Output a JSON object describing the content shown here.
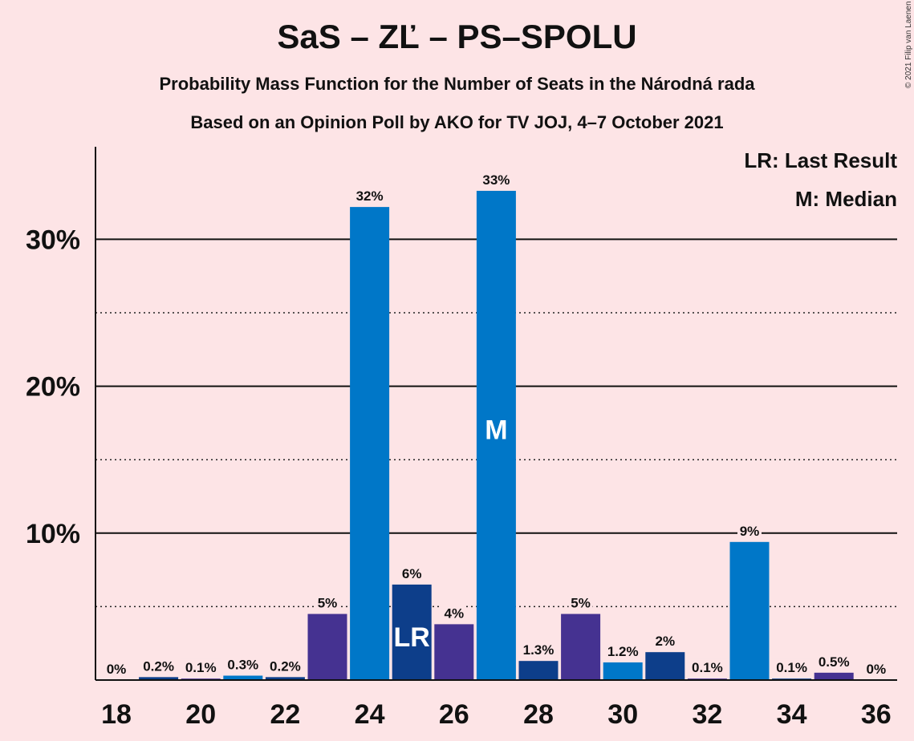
{
  "header": {
    "title": "SaS – ZĽ – PS–SPOLU",
    "subtitle1": "Probability Mass Function for the Number of Seats in the Národná rada",
    "subtitle2": "Based on an Opinion Poll by AKO for TV JOJ, 4–7 October 2021"
  },
  "copyright": "© 2021 Filip van Laenen",
  "legend": {
    "last_result": "LR: Last Result",
    "median": "M: Median"
  },
  "chart_data": {
    "type": "bar",
    "x": [
      18,
      19,
      20,
      21,
      22,
      23,
      24,
      25,
      26,
      27,
      28,
      29,
      30,
      31,
      32,
      33,
      34,
      35,
      36
    ],
    "values": [
      0,
      0.2,
      0.1,
      0.3,
      0.2,
      4.5,
      32.2,
      6.5,
      3.8,
      33.3,
      1.3,
      4.5,
      1.2,
      1.9,
      0.1,
      9.4,
      0.1,
      0.5,
      0
    ],
    "data_labels": [
      "0%",
      "0.2%",
      "0.1%",
      "0.3%",
      "0.2%",
      "5%",
      "32%",
      "6%",
      "4%",
      "33%",
      "1.3%",
      "5%",
      "1.2%",
      "2%",
      "0.1%",
      "9%",
      "0.1%",
      "0.5%",
      "0%"
    ],
    "x_ticks": [
      "18",
      "20",
      "22",
      "24",
      "26",
      "28",
      "30",
      "32",
      "34",
      "36"
    ],
    "y_ticks": [
      "10%",
      "20%",
      "30%"
    ],
    "ylim": [
      0,
      36.3
    ],
    "major_grid": [
      10,
      20,
      30
    ],
    "minor_grid": [
      5,
      15,
      25
    ],
    "last_result_seat": 25,
    "last_result_label": "LR",
    "median_seat": 27,
    "median_label": "M",
    "colors": {
      "blue": "#0077c8",
      "purple": "#453291",
      "navy": "#0d3e8a",
      "background": "#fde4e6"
    },
    "bar_colors": [
      "blue",
      "navy",
      "purple",
      "blue",
      "navy",
      "purple",
      "blue",
      "navy",
      "purple",
      "blue",
      "navy",
      "purple",
      "blue",
      "navy",
      "purple",
      "blue",
      "navy",
      "purple",
      "blue"
    ]
  }
}
